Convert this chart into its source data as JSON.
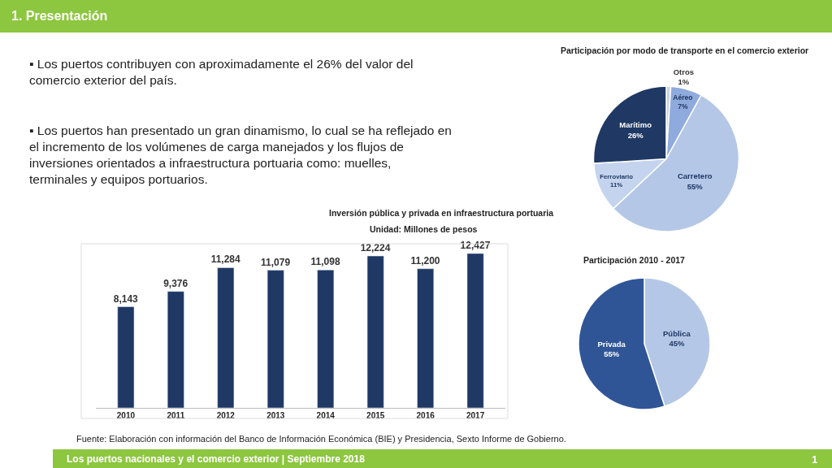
{
  "chart_data": [
    {
      "type": "other",
      "title": "1. Presentación",
      "annotations": [
        "▪ Los puertos contribuyen con aproximadamente el 26% del valor del comercio exterior del país.",
        "▪ Los puertos han presentado un gran dinamismo, lo cual se ha reflejado en el incremento de los volúmenes de carga manejados y los flujos de inversiones orientados a infraestructura portuaria como: muelles, terminales y equipos portuarios.",
        "Los puertos nacionales y el comercio exterior | Septiembre 2018",
        "1"
      ]
    },
    {
      "type": "pie",
      "title": "Participación por modo de transporte en el comercio exterior",
      "categories": [
        "Otros",
        "Aéreo",
        "Carretero",
        "Ferroviario",
        "Marítimo"
      ],
      "values": [
        1,
        7,
        55,
        11,
        26
      ],
      "value_labels": [
        "1%",
        "7%",
        "55%",
        "11%",
        "26%"
      ],
      "colors": [
        "#c9d3e6",
        "#8faadc",
        "#b4c7e7",
        "#c5d4ee",
        "#1f3864"
      ]
    },
    {
      "type": "bar",
      "title": "Inversión pública y privada en infraestructura portuaria",
      "subtitle": "Unidad: Millones de pesos",
      "categories": [
        "2010",
        "2011",
        "2012",
        "2013",
        "2014",
        "2015",
        "2016",
        "2017"
      ],
      "values": [
        8143,
        9376,
        11284,
        11079,
        11098,
        12224,
        11200,
        12427
      ],
      "value_labels": [
        "8,143",
        "9,376",
        "11,284",
        "11,079",
        "11,098",
        "12,224",
        "11,200",
        "12,427"
      ],
      "color": "#1f3864",
      "tick_labels": "x",
      "annotations": [
        "Fuente: Elaboración con información del Banco de Información Económica (BIE) y Presidencia, Sexto Informe de Gobierno."
      ]
    },
    {
      "type": "pie",
      "title": "Participación 2010 - 2017",
      "categories": [
        "Pública",
        "Privada"
      ],
      "values": [
        45,
        55
      ],
      "value_labels": [
        "45%",
        "55%"
      ],
      "colors": [
        "#b4c7e7",
        "#2f5597"
      ]
    }
  ]
}
